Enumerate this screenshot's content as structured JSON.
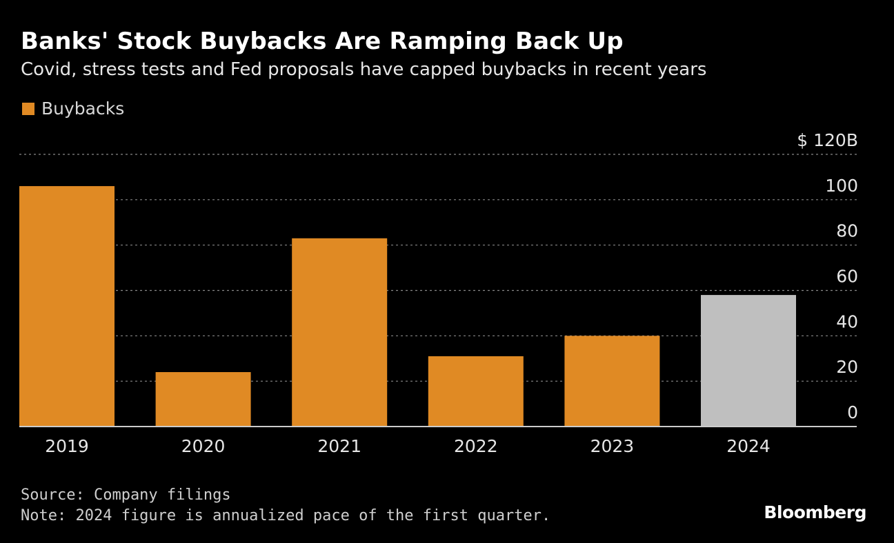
{
  "title": "Banks' Stock Buybacks Are Ramping Back Up",
  "subtitle": "Covid, stress tests and Fed proposals have capped buybacks in recent years",
  "footer": {
    "source": "Source: Company filings",
    "note": "Note: 2024 figure is annualized pace of the first quarter.",
    "logo": "Bloomberg"
  },
  "colors": {
    "bar": "#e08a24",
    "highlight": "#bfbfbf",
    "grid": "#8a8a8a",
    "axis": "#cccccc",
    "text": "#e6e6e6"
  },
  "chart_data": {
    "type": "bar",
    "categories": [
      "2019",
      "2020",
      "2021",
      "2022",
      "2023",
      "2024"
    ],
    "series": [
      {
        "name": "Buybacks",
        "values": [
          106,
          24,
          83,
          31,
          40,
          58
        ]
      }
    ],
    "highlight_category": "2024",
    "ylim": [
      0,
      120
    ],
    "yticks": [
      0,
      20,
      40,
      60,
      80,
      100,
      120
    ],
    "ytick_labels": [
      "0",
      "20",
      "40",
      "60",
      "80",
      "100",
      "$ 120B"
    ],
    "grid": true,
    "legend_position": "top-left"
  }
}
